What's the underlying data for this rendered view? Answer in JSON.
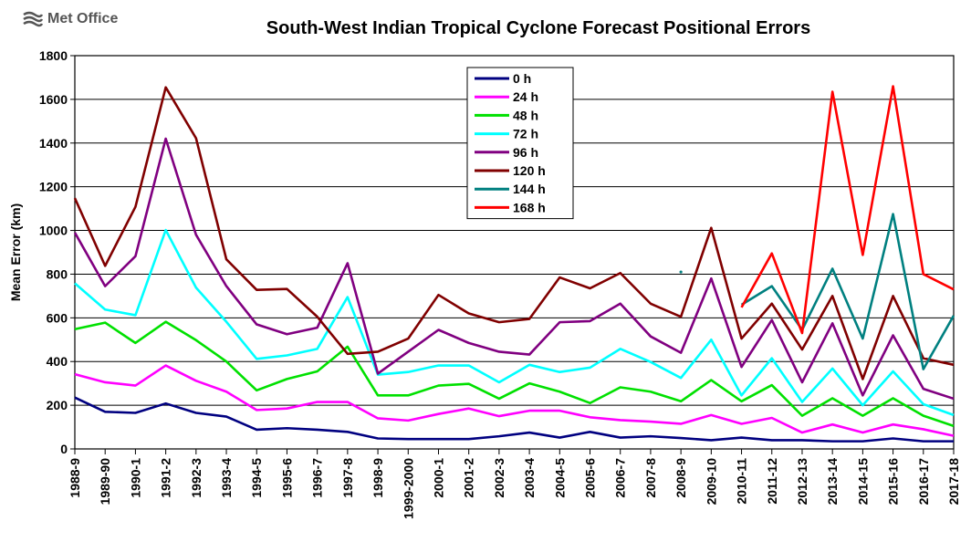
{
  "logo": {
    "text": "Met Office"
  },
  "chart_data": {
    "type": "line",
    "title": "South-West  Indian Tropical Cyclone Forecast Positional Errors",
    "xlabel": "",
    "ylabel": "Mean Error (km)",
    "ylim": [
      0,
      1800
    ],
    "yticks": [
      0,
      200,
      400,
      600,
      800,
      1000,
      1200,
      1400,
      1600,
      1800
    ],
    "grid": "horizontal",
    "legend_position": "top-center",
    "categories": [
      "1988-9",
      "1989-90",
      "1990-1",
      "1991-2",
      "1992-3",
      "1993-4",
      "1994-5",
      "1995-6",
      "1996-7",
      "1997-8",
      "1998-9",
      "1999-2000",
      "2000-1",
      "2001-2",
      "2002-3",
      "2003-4",
      "2004-5",
      "2005-6",
      "2006-7",
      "2007-8",
      "2008-9",
      "2009-10",
      "2010-11",
      "2011-12",
      "2012-13",
      "2013-14",
      "2014-15",
      "2015-16",
      "2016-17",
      "2017-18"
    ],
    "series": [
      {
        "name": "0 h",
        "color": "#000080",
        "values": [
          235,
          170,
          165,
          208,
          165,
          148,
          88,
          95,
          88,
          78,
          48,
          45,
          45,
          45,
          58,
          75,
          52,
          78,
          52,
          58,
          50,
          40,
          52,
          40,
          40,
          35,
          35,
          48,
          35,
          35
        ]
      },
      {
        "name": "24 h",
        "color": "#ff00ff",
        "values": [
          342,
          305,
          290,
          382,
          312,
          262,
          178,
          185,
          215,
          215,
          140,
          130,
          160,
          185,
          150,
          175,
          175,
          145,
          132,
          125,
          115,
          155,
          115,
          142,
          75,
          112,
          75,
          112,
          90,
          60
        ]
      },
      {
        "name": "48 h",
        "color": "#00e000",
        "values": [
          548,
          578,
          485,
          582,
          498,
          400,
          268,
          320,
          355,
          468,
          245,
          245,
          290,
          298,
          230,
          300,
          262,
          210,
          282,
          262,
          218,
          315,
          218,
          292,
          152,
          232,
          152,
          232,
          152,
          105
        ]
      },
      {
        "name": "72 h",
        "color": "#00ffff",
        "values": [
          758,
          638,
          612,
          1002,
          738,
          582,
          412,
          428,
          458,
          695,
          340,
          352,
          382,
          382,
          305,
          385,
          352,
          372,
          458,
          398,
          325,
          500,
          245,
          415,
          215,
          368,
          200,
          355,
          205,
          155
        ]
      },
      {
        "name": "96 h",
        "color": "#800080",
        "values": [
          990,
          745,
          882,
          1420,
          980,
          745,
          570,
          525,
          555,
          850,
          345,
          445,
          545,
          485,
          445,
          432,
          580,
          585,
          665,
          515,
          440,
          780,
          375,
          590,
          305,
          575,
          245,
          520,
          275,
          230
        ]
      },
      {
        "name": "120 h",
        "color": "#800000",
        "values": [
          1148,
          838,
          1108,
          1655,
          1422,
          868,
          728,
          732,
          605,
          435,
          445,
          505,
          705,
          620,
          580,
          595,
          785,
          735,
          805,
          665,
          605,
          1012,
          505,
          665,
          455,
          700,
          320,
          700,
          415,
          385
        ]
      },
      {
        "name": "144 h",
        "color": "#008080",
        "values": [
          null,
          null,
          null,
          null,
          null,
          null,
          null,
          null,
          null,
          null,
          null,
          null,
          null,
          null,
          null,
          null,
          null,
          null,
          null,
          null,
          810,
          null,
          660,
          745,
          545,
          825,
          505,
          1075,
          365,
          610
        ]
      },
      {
        "name": "168 h",
        "color": "#ff0000",
        "values": [
          null,
          null,
          null,
          null,
          null,
          null,
          null,
          null,
          null,
          null,
          null,
          null,
          null,
          null,
          null,
          null,
          null,
          null,
          null,
          null,
          null,
          null,
          648,
          895,
          530,
          1635,
          888,
          1660,
          800,
          730
        ]
      }
    ]
  }
}
